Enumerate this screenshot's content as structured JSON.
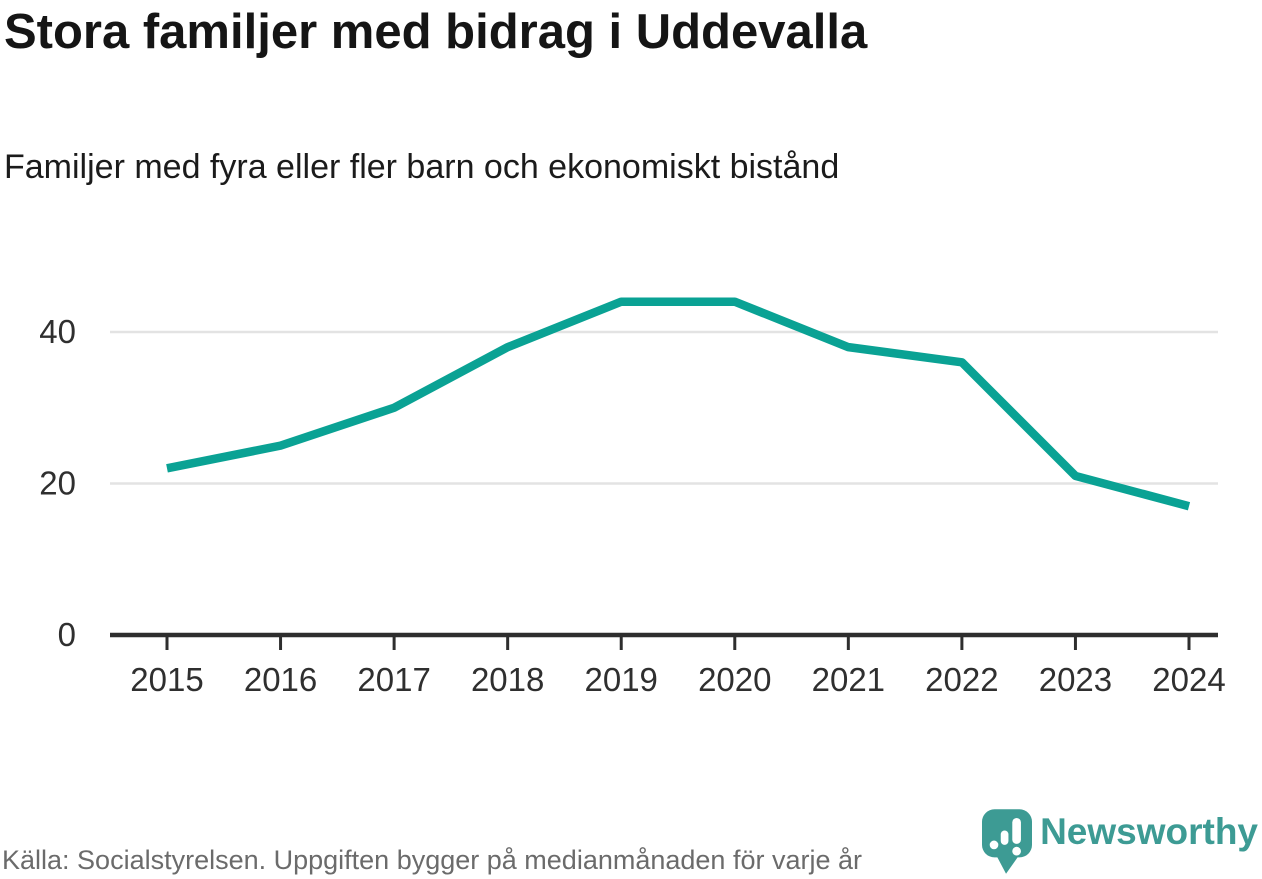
{
  "header": {
    "title": "Stora familjer med bidrag i Uddevalla",
    "subtitle": "Familjer med fyra eller fler barn och ekonomiskt bistånd"
  },
  "footer": {
    "source": "Källa: Socialstyrelsen. Uppgiften bygger på medianmånaden för varje år",
    "brand": "Newsworthy"
  },
  "chart_data": {
    "type": "line",
    "title": "Stora familjer med bidrag i Uddevalla",
    "subtitle": "Familjer med fyra eller fler barn och ekonomiskt bistånd",
    "x": [
      2015,
      2016,
      2017,
      2018,
      2019,
      2020,
      2021,
      2022,
      2023,
      2024
    ],
    "values": [
      22,
      25,
      30,
      38,
      44,
      44,
      38,
      36,
      21,
      17
    ],
    "series_name": "Familjer med fyra eller fler barn och ekonomiskt bistånd",
    "yticks": [
      0,
      20,
      40
    ],
    "ylim": [
      0,
      47
    ],
    "xlabel": "",
    "ylabel": "",
    "grid": "horizontal",
    "legend": "none",
    "line_color": "#0aa294",
    "axis_color": "#2e2e2e",
    "grid_color": "#e3e3e3",
    "tick_label_color": "#2f2f2f"
  },
  "colors": {
    "background": "#ffffff",
    "accent_teal": "#0aa294",
    "brand_teal": "#3d9b94",
    "title_text": "#151515",
    "muted_text": "#6b6b6b"
  }
}
